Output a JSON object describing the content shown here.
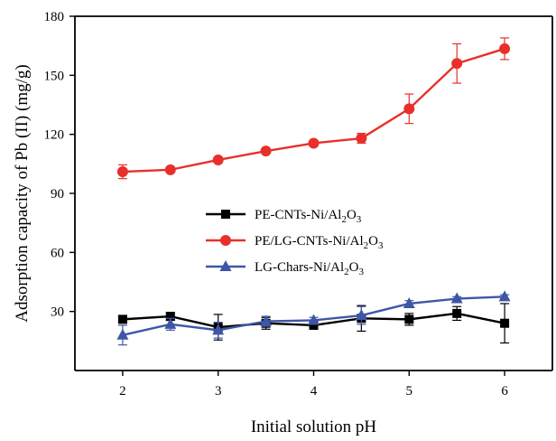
{
  "chart_data": {
    "type": "line",
    "xlabel": "Initial solution pH",
    "ylabel": "Adsorption capacity of Pb (II) (mg/g)",
    "x": [
      2,
      2.5,
      3,
      3.5,
      4,
      4.5,
      5,
      5.5,
      6
    ],
    "xlim": [
      1.5,
      6.5
    ],
    "ylim": [
      0,
      180
    ],
    "xticks": [
      2,
      3,
      4,
      5,
      6
    ],
    "yticks": [
      30,
      60,
      90,
      120,
      150,
      180
    ],
    "grid": false,
    "legend_position": "center-left",
    "series": [
      {
        "name": "PE-CNTs-Ni/Al2O3",
        "legend_parts": [
          {
            "t": "PE-CNTs-Ni/Al",
            "sub": false
          },
          {
            "t": "2",
            "sub": true
          },
          {
            "t": "O",
            "sub": false
          },
          {
            "t": "3",
            "sub": true
          }
        ],
        "color": "#000000",
        "marker": "square",
        "values": [
          26,
          27.5,
          22,
          24,
          23,
          26.5,
          26,
          29,
          24
        ],
        "errors": [
          1.5,
          2.0,
          6.5,
          3.0,
          2.0,
          6.5,
          3.0,
          3.5,
          10.0
        ]
      },
      {
        "name": "PE/LG-CNTs-Ni/Al2O3",
        "legend_parts": [
          {
            "t": "PE/LG-CNTs-Ni/Al",
            "sub": false
          },
          {
            "t": "2",
            "sub": true
          },
          {
            "t": "O",
            "sub": false
          },
          {
            "t": "3",
            "sub": true
          }
        ],
        "color": "#e8302a",
        "marker": "circle",
        "values": [
          101,
          102,
          107,
          111.5,
          115.5,
          118,
          133,
          156,
          163.5
        ],
        "errors": [
          3.5,
          1.0,
          1.0,
          1.0,
          1.0,
          2.5,
          7.5,
          10.0,
          5.5
        ]
      },
      {
        "name": "LG-Chars-Ni/Al2O3",
        "legend_parts": [
          {
            "t": "LG-Chars-Ni/Al",
            "sub": false
          },
          {
            "t": "2",
            "sub": true
          },
          {
            "t": "O",
            "sub": false
          },
          {
            "t": "3",
            "sub": true
          }
        ],
        "color": "#3f56a6",
        "marker": "triangle",
        "values": [
          18,
          23.5,
          20.5,
          25,
          25.5,
          28,
          34,
          36.5,
          37.5
        ],
        "errors": [
          5.0,
          3.0,
          4.0,
          2.5,
          1.5,
          4.5,
          1.5,
          1.0,
          1.0
        ]
      }
    ]
  }
}
